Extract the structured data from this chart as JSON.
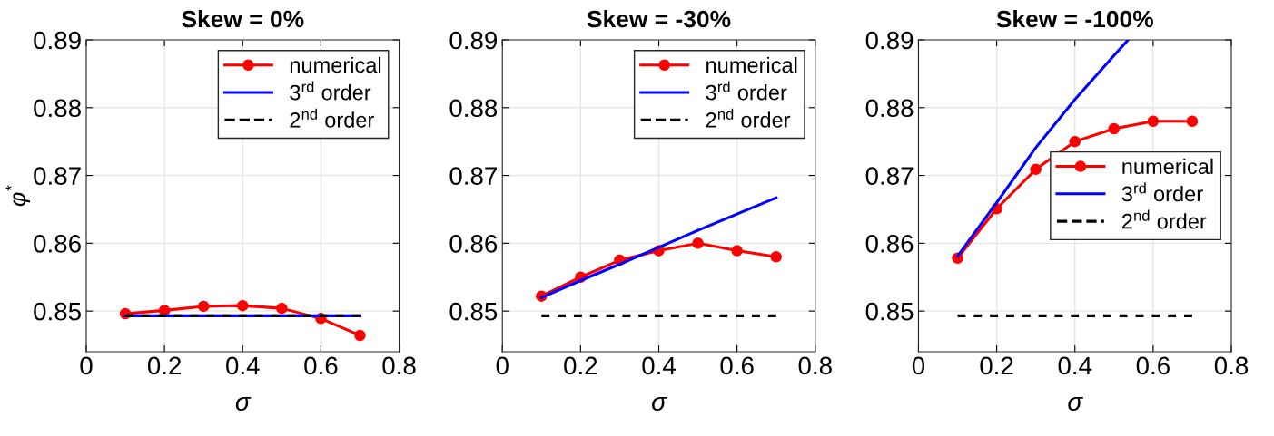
{
  "chart_data": [
    {
      "type": "line",
      "title": "Skew = 0%",
      "xlabel": "σ",
      "ylabel": "φ$^{*}$",
      "xlim": [
        0,
        0.8
      ],
      "xticks": [
        0,
        0.2,
        0.4,
        0.6,
        0.8
      ],
      "ylim": [
        0.844,
        0.89
      ],
      "yticks": [
        0.85,
        0.86,
        0.87,
        0.88,
        0.89
      ],
      "grid": true,
      "legend": "top right",
      "series": [
        {
          "name": "numerical",
          "color": "#ff0000",
          "marker": "circle",
          "line_style": "solid",
          "x": [
            0.1,
            0.2,
            0.3,
            0.4,
            0.5,
            0.6,
            0.7
          ],
          "values": [
            0.8496,
            0.8501,
            0.8507,
            0.8508,
            0.8504,
            0.8489,
            0.8464
          ]
        },
        {
          "name": "3$^{rd}$ order",
          "color": "#0000ff",
          "line_style": "solid",
          "x": [
            0.1,
            0.7
          ],
          "values": [
            0.8493,
            0.8493
          ]
        },
        {
          "name": "2$^{nd}$ order",
          "color": "#000000",
          "line_style": "dashed",
          "x": [
            0.1,
            0.7
          ],
          "values": [
            0.8493,
            0.8493
          ]
        }
      ]
    },
    {
      "type": "line",
      "title": "Skew = -30%",
      "xlabel": "σ",
      "xlim": [
        0,
        0.8
      ],
      "xticks": [
        0,
        0.2,
        0.4,
        0.6,
        0.8
      ],
      "ylim": [
        0.844,
        0.89
      ],
      "yticks": [
        0.85,
        0.86,
        0.87,
        0.88,
        0.89
      ],
      "grid": true,
      "legend": "top right",
      "series": [
        {
          "name": "numerical",
          "color": "#ff0000",
          "marker": "circle",
          "line_style": "solid",
          "x": [
            0.1,
            0.2,
            0.3,
            0.4,
            0.5,
            0.6,
            0.7
          ],
          "values": [
            0.8522,
            0.855,
            0.8575,
            0.8589,
            0.86,
            0.8589,
            0.858
          ]
        },
        {
          "name": "3$^{rd}$ order",
          "color": "#0000ff",
          "line_style": "solid",
          "x": [
            0.1,
            0.2,
            0.3,
            0.4,
            0.5,
            0.6,
            0.7
          ],
          "values": [
            0.852,
            0.8545,
            0.8569,
            0.8594,
            0.8619,
            0.8643,
            0.8667
          ]
        },
        {
          "name": "2$^{nd}$ order",
          "color": "#000000",
          "line_style": "dashed",
          "x": [
            0.1,
            0.7
          ],
          "values": [
            0.8493,
            0.8493
          ]
        }
      ]
    },
    {
      "type": "line",
      "title": "Skew = -100%",
      "xlabel": "σ",
      "xlim": [
        0,
        0.8
      ],
      "xticks": [
        0,
        0.2,
        0.4,
        0.6,
        0.8
      ],
      "ylim": [
        0.844,
        0.89
      ],
      "yticks": [
        0.85,
        0.86,
        0.87,
        0.88,
        0.89
      ],
      "grid": true,
      "legend": "right",
      "series": [
        {
          "name": "numerical",
          "color": "#ff0000",
          "marker": "circle",
          "line_style": "solid",
          "x": [
            0.1,
            0.2,
            0.3,
            0.4,
            0.5,
            0.6,
            0.7
          ],
          "values": [
            0.8578,
            0.8651,
            0.8709,
            0.875,
            0.8769,
            0.878,
            0.878
          ]
        },
        {
          "name": "3$^{rd}$ order",
          "color": "#0000ff",
          "line_style": "solid",
          "x": [
            0.1,
            0.2,
            0.3,
            0.4,
            0.5,
            0.536
          ],
          "values": [
            0.8581,
            0.866,
            0.8741,
            0.8812,
            0.8877,
            0.89
          ]
        },
        {
          "name": "2$^{nd}$ order",
          "color": "#000000",
          "line_style": "dashed",
          "x": [
            0.1,
            0.7
          ],
          "values": [
            0.8493,
            0.8493
          ]
        }
      ]
    }
  ]
}
